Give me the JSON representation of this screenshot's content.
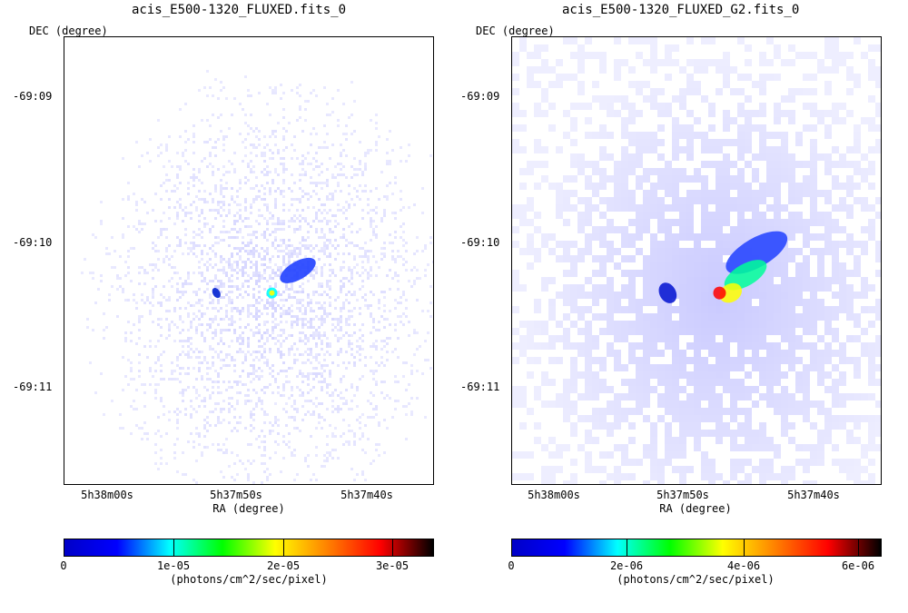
{
  "chart_data": [
    {
      "type": "heatmap",
      "title": "acis_E500-1320_FLUXED.fits_0",
      "xlabel": "RA (degree)",
      "ylabel": "DEC (degree)",
      "x_ticks": [
        "5h38m00s",
        "5h37m50s",
        "5h37m40s"
      ],
      "y_ticks": [
        "-69:09",
        "-69:10",
        "-69:11"
      ],
      "colorbar": {
        "label": "(photons/cm^2/sec/pixel)",
        "ticks": [
          "0",
          "1e-05",
          "2e-05",
          "3e-05"
        ],
        "tick_values": [
          0,
          1e-05,
          2e-05,
          3e-05
        ],
        "range": [
          0,
          3.4e-05
        ]
      }
    },
    {
      "type": "heatmap",
      "title": "acis_E500-1320_FLUXED_G2.fits_0",
      "xlabel": "RA (degree)",
      "ylabel": "DEC (degree)",
      "x_ticks": [
        "5h38m00s",
        "5h37m50s",
        "5h37m40s"
      ],
      "y_ticks": [
        "-69:09",
        "-69:10",
        "-69:11"
      ],
      "colorbar": {
        "label": "(photons/cm^2/sec/pixel)",
        "ticks": [
          "0",
          "2e-06",
          "4e-06",
          "6e-06"
        ],
        "tick_values": [
          0,
          2e-06,
          4e-06,
          6e-06
        ],
        "range": [
          0,
          6.6e-06
        ]
      }
    }
  ],
  "colormap": [
    "#ffffff",
    "#0000ff",
    "#00ffff",
    "#00ff00",
    "#ffff00",
    "#ff8000",
    "#ff0000",
    "#000000"
  ]
}
